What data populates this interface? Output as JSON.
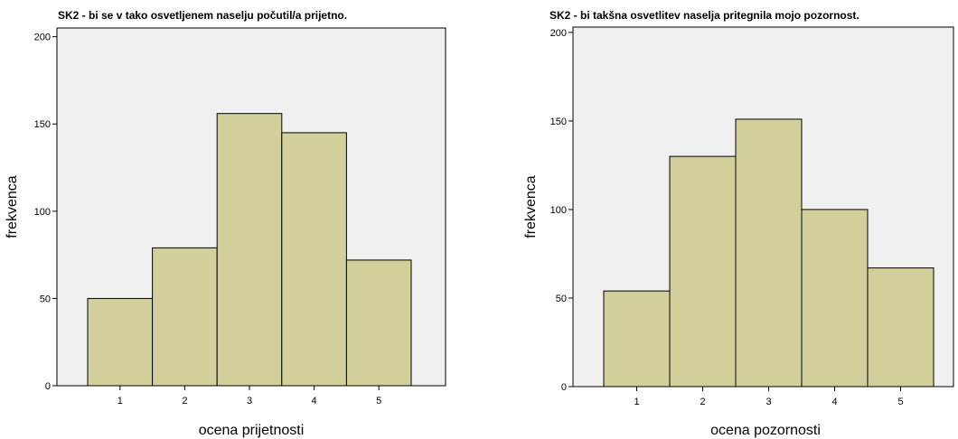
{
  "chart_data": [
    {
      "type": "bar",
      "title": "SK2 - bi se v tako osvetljenem naselju počutil/a prijetno.",
      "xlabel": "ocena prijetnosti",
      "ylabel": "frekvenca",
      "categories": [
        "1",
        "2",
        "3",
        "4",
        "5"
      ],
      "values": [
        50,
        79,
        156,
        145,
        72
      ],
      "yticks": [
        "0",
        "50",
        "100",
        "150",
        "200"
      ],
      "ylim": [
        0,
        205
      ],
      "grid": false,
      "legend": "none",
      "colors": {
        "bar": "#d3cf9a",
        "plot_background": "#f0f0f0"
      }
    },
    {
      "type": "bar",
      "title": "SK2 - bi takšna osvetlitev naselja pritegnila mojo pozornost.",
      "xlabel": "ocena pozornosti",
      "ylabel": "frekvenca",
      "categories": [
        "1",
        "2",
        "3",
        "4",
        "5"
      ],
      "values": [
        54,
        130,
        151,
        100,
        67
      ],
      "yticks": [
        "0",
        "50",
        "100",
        "150",
        "200"
      ],
      "ylim": [
        0,
        203
      ],
      "grid": false,
      "legend": "none",
      "colors": {
        "bar": "#d3cf9a",
        "plot_background": "#f0f0f0"
      }
    }
  ]
}
